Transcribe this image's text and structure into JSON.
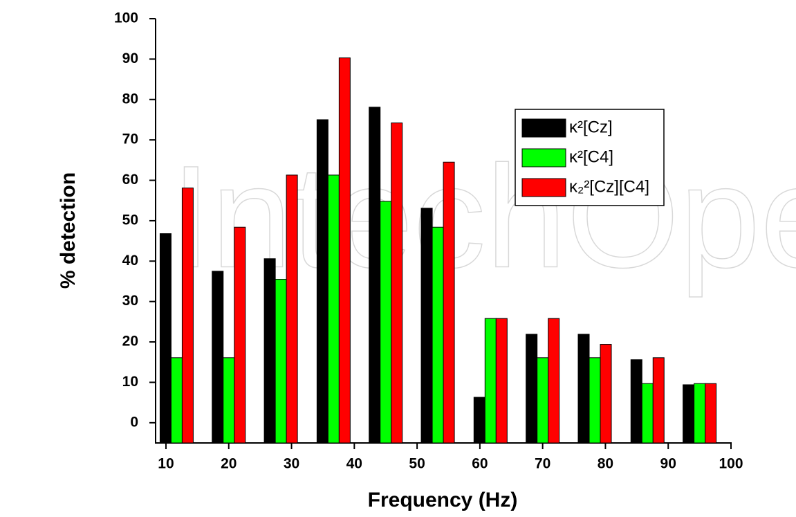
{
  "chart_data": {
    "type": "bar",
    "watermark": "IntechOpen",
    "xlabel": "Frequency (Hz)",
    "ylabel": "% detection",
    "x": [
      11.7,
      20.0,
      28.3,
      36.7,
      45.0,
      53.3,
      61.7,
      70.0,
      78.3,
      86.7,
      95.0
    ],
    "series": [
      {
        "name": "κ²[Cz]",
        "color": "#000000",
        "values": [
          46.8,
          37.5,
          40.6,
          75.0,
          78.1,
          53.1,
          6.3,
          21.9,
          21.9,
          15.6,
          9.4
        ]
      },
      {
        "name": "κ²[C4]",
        "color": "#00ff00",
        "values": [
          16.1,
          16.1,
          35.5,
          61.3,
          54.8,
          48.4,
          25.8,
          16.1,
          16.1,
          9.7,
          9.7
        ]
      },
      {
        "name": "κ₂²[Cz][C4]",
        "color": "#ff0000",
        "values": [
          58.1,
          48.4,
          61.3,
          90.3,
          74.2,
          64.5,
          25.8,
          25.8,
          19.4,
          16.1,
          9.7
        ]
      }
    ],
    "xlim": [
      8.35,
      100
    ],
    "xticks": [
      10,
      20,
      30,
      40,
      50,
      60,
      70,
      80,
      90,
      100
    ],
    "ylim": [
      -5,
      100
    ],
    "yticks": [
      0,
      10,
      20,
      30,
      40,
      50,
      60,
      70,
      80,
      90,
      100
    ],
    "grid": false,
    "legend": "upper right"
  }
}
